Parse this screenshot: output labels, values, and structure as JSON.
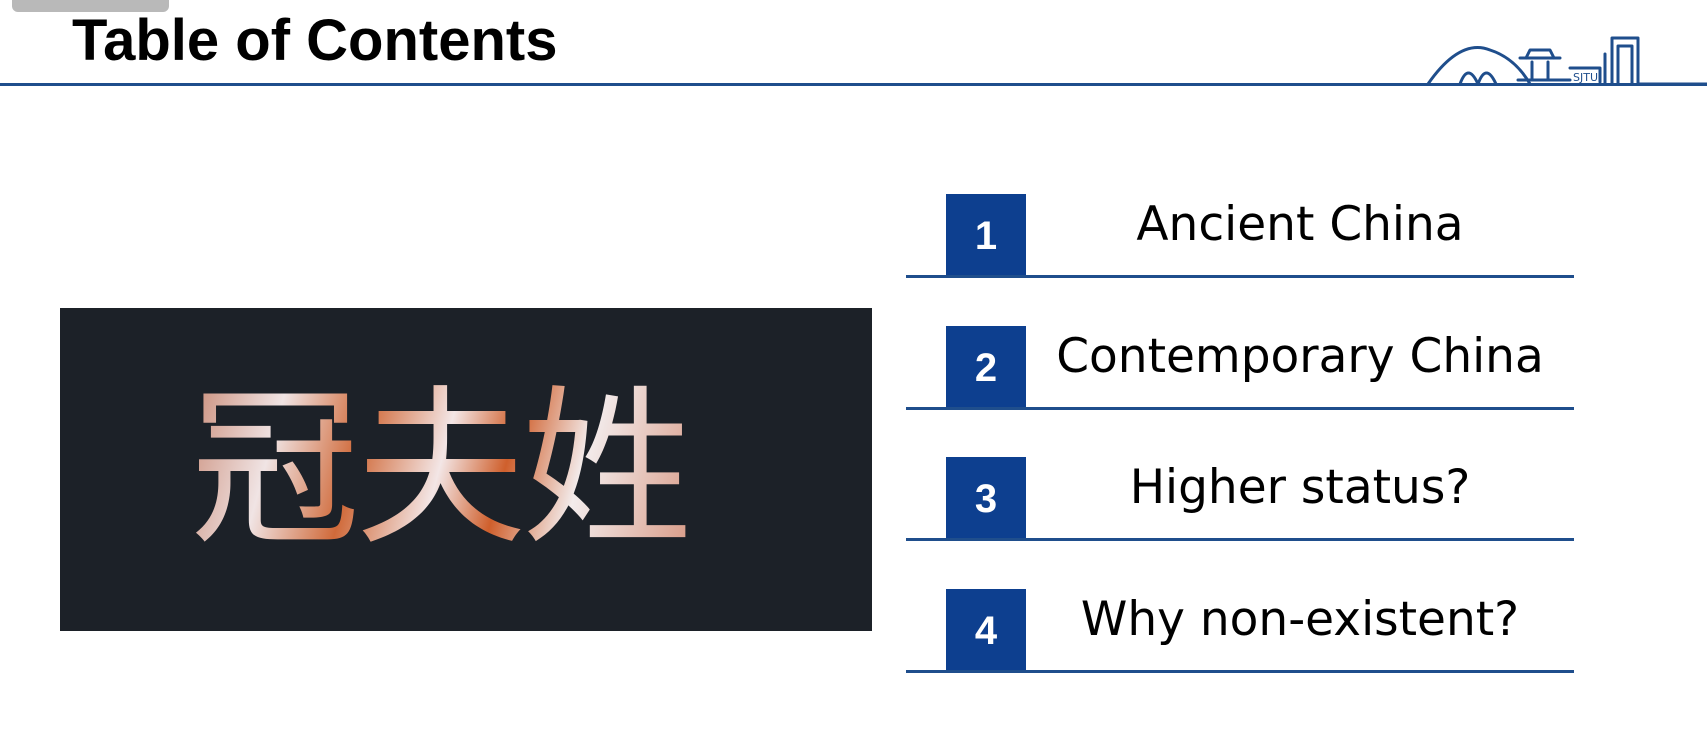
{
  "header": {
    "title": "Table of Contents"
  },
  "hero": {
    "chinese_text": "冠夫姓"
  },
  "toc": {
    "items": [
      {
        "number": "1",
        "label": "Ancient China"
      },
      {
        "number": "2",
        "label": "Contemporary China"
      },
      {
        "number": "3",
        "label": "Higher status?"
      },
      {
        "number": "4",
        "label": "Why non-existent?"
      }
    ]
  },
  "logo": {
    "text": "SJTU"
  },
  "colors": {
    "accent_blue": "#0d3f8f",
    "rule_blue": "#1f4e8c",
    "hero_background": "#1c2128",
    "title_text": "#000000"
  }
}
